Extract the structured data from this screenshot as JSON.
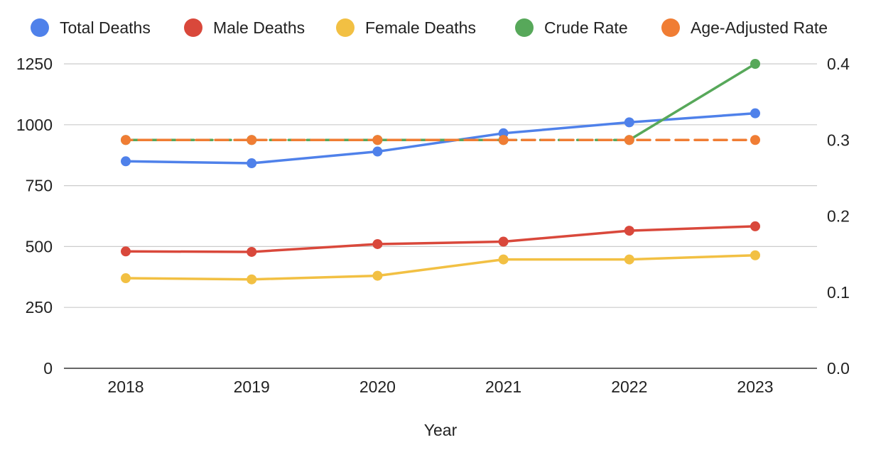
{
  "chart_data": {
    "type": "line",
    "title": "",
    "xlabel": "Year",
    "ylabel": "",
    "y2label": "",
    "categories": [
      "2018",
      "2019",
      "2020",
      "2021",
      "2022",
      "2023"
    ],
    "y_axis": {
      "min": 0,
      "max": 1250,
      "ticks": [
        0,
        250,
        500,
        750,
        1000,
        1250
      ],
      "tick_labels": [
        "0",
        "250",
        "500",
        "750",
        "1000",
        "1250"
      ]
    },
    "y2_axis": {
      "min": 0,
      "max": 0.4,
      "ticks": [
        0,
        0.1,
        0.2,
        0.3,
        0.4
      ],
      "tick_labels": [
        "0.0",
        "0.1",
        "0.2",
        "0.3",
        "0.4"
      ]
    },
    "grid": true,
    "legend_position": "top",
    "series": [
      {
        "name": "Total Deaths",
        "axis": "left",
        "color": "#4f81ea",
        "dashed": false,
        "values": [
          850,
          842,
          890,
          965,
          1010,
          1047
        ]
      },
      {
        "name": "Male Deaths",
        "axis": "left",
        "color": "#d9483b",
        "dashed": false,
        "values": [
          480,
          478,
          510,
          520,
          565,
          583
        ]
      },
      {
        "name": "Female Deaths",
        "axis": "left",
        "color": "#f2c043",
        "dashed": false,
        "values": [
          370,
          365,
          380,
          447,
          447,
          464
        ]
      },
      {
        "name": "Crude Rate",
        "axis": "right",
        "color": "#57a85a",
        "dashed": true,
        "values": [
          0.3,
          0.3,
          0.3,
          0.3,
          0.3,
          0.4
        ]
      },
      {
        "name": "Age-Adjusted Rate",
        "axis": "right",
        "color": "#f07d34",
        "dashed": true,
        "values": [
          0.3,
          0.3,
          0.3,
          0.3,
          0.3,
          0.3
        ]
      }
    ]
  }
}
